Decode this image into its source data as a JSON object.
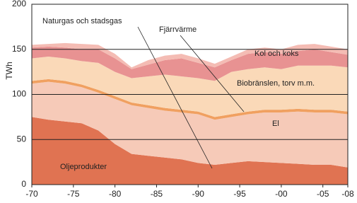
{
  "chart_data": {
    "type": "stacked-area",
    "y_label": "TWh",
    "x": [
      1970,
      1972,
      1974,
      1976,
      1978,
      1980,
      1982,
      1984,
      1986,
      1988,
      1990,
      1992,
      1994,
      1996,
      1998,
      2000,
      2002,
      2004,
      2006,
      2008
    ],
    "series": [
      {
        "name": "Oljeprodukter",
        "color": "#e07352",
        "values": [
          75,
          72,
          70,
          68,
          60,
          45,
          34,
          32,
          30,
          28,
          24,
          22,
          24,
          26,
          25,
          24,
          23,
          22,
          22,
          19
        ]
      },
      {
        "name": "El",
        "color": "#f6cab8",
        "values": [
          37,
          42,
          42,
          40,
          42,
          50,
          54,
          53,
          52,
          52,
          54,
          50,
          51,
          52,
          55,
          56,
          58,
          58,
          58,
          59
        ]
      },
      {
        "name": "Fjärrvärme",
        "color": "#f0a060",
        "values": [
          3,
          3,
          3,
          3,
          3,
          3,
          3,
          3,
          3,
          3,
          3,
          3,
          3,
          3,
          3,
          3,
          3,
          3,
          3,
          3
        ]
      },
      {
        "name": "Biobränslen, torv m.m.",
        "color": "#fad9b8",
        "values": [
          25,
          25,
          25,
          26,
          30,
          27,
          27,
          32,
          37,
          37,
          37,
          40,
          47,
          47,
          47,
          45,
          48,
          49,
          49,
          49
        ]
      },
      {
        "name": "Kol och koks",
        "color": "#e89292",
        "values": [
          12,
          11,
          12,
          13,
          15,
          15,
          10,
          13,
          16,
          20,
          17,
          15,
          13,
          17,
          17,
          17,
          16,
          18,
          15,
          14
        ]
      },
      {
        "name": "Naturgas och stadsgas",
        "color": "#f4bcb4",
        "values": [
          3,
          3,
          5,
          6,
          5,
          5,
          2,
          5,
          5,
          5,
          5,
          4,
          4,
          5,
          5,
          5,
          7,
          6,
          6,
          6
        ]
      }
    ],
    "xlim": [
      1970,
      2008
    ],
    "xticks": [
      {
        "value": 1970,
        "label": "-70"
      },
      {
        "value": 1975,
        "label": "-75"
      },
      {
        "value": 1980,
        "label": "-80"
      },
      {
        "value": 1985,
        "label": "-85"
      },
      {
        "value": 1990,
        "label": "-90"
      },
      {
        "value": 1995,
        "label": "-95"
      },
      {
        "value": 2000,
        "label": "-00"
      },
      {
        "value": 2005,
        "label": "-05"
      },
      {
        "value": 2008,
        "label": "-08"
      }
    ],
    "ylim": [
      0,
      200
    ],
    "yticks": [
      0,
      50,
      100,
      150,
      200
    ],
    "grid": true
  }
}
